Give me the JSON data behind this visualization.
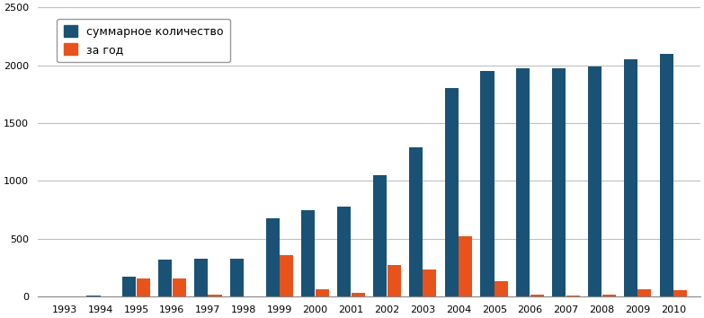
{
  "years": [
    1993,
    1994,
    1995,
    1996,
    1997,
    1998,
    1999,
    2000,
    2001,
    2002,
    2003,
    2004,
    2005,
    2006,
    2007,
    2008,
    2009,
    2010
  ],
  "cumulative": [
    0,
    8,
    170,
    320,
    330,
    330,
    680,
    750,
    775,
    1050,
    1290,
    1800,
    1950,
    1975,
    1975,
    1990,
    2050,
    2100
  ],
  "annual": [
    0,
    0,
    155,
    155,
    20,
    0,
    355,
    65,
    30,
    270,
    235,
    520,
    130,
    20,
    5,
    20,
    60,
    55
  ],
  "bar_color_cumulative": "#1A5276",
  "bar_color_annual": "#E8531B",
  "legend_labels": [
    "суммарное количество",
    "за год"
  ],
  "ylim": [
    0,
    2500
  ],
  "yticks": [
    0,
    500,
    1000,
    1500,
    2000,
    2500
  ],
  "background_color": "#FFFFFF",
  "grid_color": "#C0C0C0",
  "bar_width": 0.38,
  "bar_gap": 0.01
}
